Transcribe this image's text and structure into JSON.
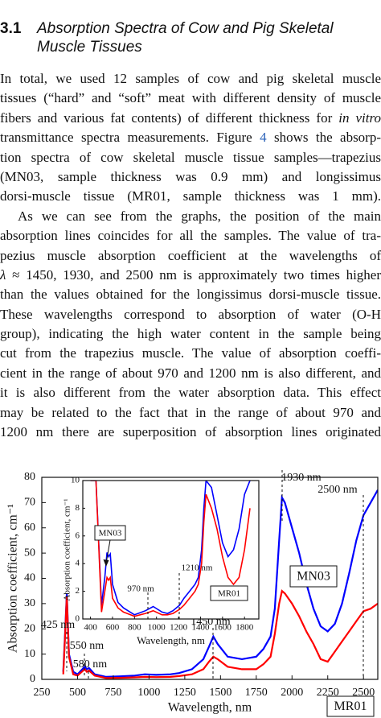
{
  "heading": {
    "number": "3.1",
    "title_lines": [
      "Absorption Spectra of Cow and Pig Skeletal",
      "Muscle Tissues"
    ]
  },
  "paragraphs": [
    {
      "lines": [
        "In total, we used 12 samples of cow and pig skeletal muscle",
        "tissues (“hard” and “soft” meat with different density of muscle",
        [
          "fibers and various fat contents) of different thickness for ",
          {
            "text": "in vitro",
            "style": "italic"
          }
        ],
        [
          "transmittance spectra measurements. Figure ",
          {
            "text": "4",
            "style": "link"
          },
          " shows the absorp-"
        ],
        "tion spectra of cow skeletal muscle tissue samples—trapezius",
        "(MN03, sample thickness was 0.9 mm) and longissimus",
        "dorsi-muscle tissue (MR01, sample thickness was 1 mm)."
      ]
    },
    {
      "lines": [
        "As we can see from the graphs, the position of the main",
        "absorption lines coincides for all the samples. The value of tra-",
        "pezius muscle absorption coefficient at the wavelengths of",
        [
          {
            "text": "λ",
            "style": "italic"
          },
          " ≈ 1450, 1930, and 2500 nm is approximately two times higher"
        ],
        "than the values obtained for the longissimus dorsi-muscle tissue.",
        "These wavelengths correspond to absorption of water (O-H",
        "group), indicating the high water content in the sample being",
        "cut from the trapezius muscle. The value of absorption coeffi-",
        "cient in the range of about 970 and 1200 nm is also different, and",
        "it is also different from the water absorption data. This effect",
        "may be related to the fact that in the range of about 970 and",
        "1200 nm there are superposition of absorption lines originated"
      ]
    }
  ],
  "chart_data": [
    {
      "type": "line",
      "x_label": "Wavelength, nm",
      "y_label": "Absorption coefficient, cm⁻¹",
      "xlim": [
        250,
        2600
      ],
      "xticks": [
        250,
        500,
        750,
        1000,
        1250,
        1500,
        1750,
        2000,
        2250,
        2500
      ],
      "ylim": [
        0,
        80
      ],
      "yticks": [
        0,
        10,
        20,
        30,
        40,
        50,
        60,
        70,
        80
      ],
      "x": [
        400,
        410,
        425,
        440,
        470,
        500,
        550,
        565,
        580,
        620,
        700,
        800,
        900,
        970,
        1050,
        1150,
        1210,
        1300,
        1380,
        1420,
        1450,
        1480,
        1550,
        1650,
        1750,
        1800,
        1850,
        1880,
        1910,
        1930,
        1950,
        2000,
        2050,
        2100,
        2150,
        2200,
        2250,
        2300,
        2350,
        2400,
        2450,
        2500,
        2550,
        2600
      ],
      "series": [
        {
          "name": "MN03",
          "color": "#0000ff",
          "values": [
            3,
            15,
            34,
            10,
            3,
            2,
            5,
            4,
            4.5,
            2,
            1,
            1.2,
            1.5,
            2,
            1.8,
            2,
            2.5,
            4,
            8,
            13,
            17,
            14,
            9,
            8,
            9,
            12,
            17,
            28,
            55,
            72,
            70,
            60,
            50,
            38,
            28,
            21,
            19,
            22,
            30,
            42,
            55,
            65,
            70,
            75
          ]
        },
        {
          "name": "MR01",
          "color": "#ff0000",
          "values": [
            2,
            14,
            33,
            9,
            2,
            1.5,
            4,
            3,
            3.5,
            1.5,
            0.5,
            0.6,
            0.8,
            1,
            0.9,
            1,
            1.3,
            2,
            4,
            7,
            9,
            8,
            5,
            4,
            4,
            6,
            9,
            18,
            30,
            35,
            34,
            30,
            25,
            19,
            14,
            8,
            7,
            11,
            15,
            19,
            23,
            27,
            28,
            30
          ]
        }
      ],
      "annotations": [
        "425 nm",
        "550 nm",
        "580 nm",
        "1450 nm",
        "1930 nm",
        "2500 nm"
      ]
    },
    {
      "type": "line",
      "x_label": "Wavelength, nm",
      "y_label": "Absorption coefficient, cm⁻¹",
      "xlim": [
        330,
        1930
      ],
      "xticks": [
        400,
        600,
        800,
        1000,
        1200,
        1400,
        1600,
        1800
      ],
      "ylim": [
        0,
        10
      ],
      "yticks": [
        0,
        2,
        4,
        6,
        8,
        10
      ],
      "x": [
        400,
        450,
        500,
        530,
        550,
        565,
        580,
        600,
        650,
        700,
        800,
        900,
        970,
        1050,
        1100,
        1150,
        1210,
        1250,
        1300,
        1350,
        1380,
        1410,
        1430,
        1450,
        1500,
        1550,
        1600,
        1650,
        1700,
        1750,
        1800,
        1850
      ],
      "series": [
        {
          "name": "MN03",
          "color": "#0000ff",
          "values": [
            10,
            10,
            1,
            3,
            4.8,
            4.5,
            4.7,
            2.5,
            1.2,
            0.8,
            0.3,
            0.6,
            0.9,
            0.5,
            0.4,
            0.6,
            1,
            1.5,
            2,
            2.5,
            3,
            5,
            8,
            10,
            9.5,
            7.5,
            5.5,
            4.5,
            5,
            6.5,
            9,
            10
          ]
        },
        {
          "name": "MR01",
          "color": "#ff0000",
          "values": [
            10,
            10,
            0.5,
            2,
            3,
            2.8,
            3,
            1.5,
            0.8,
            0.5,
            0.2,
            0.4,
            0.6,
            0.3,
            0.3,
            0.4,
            0.7,
            1,
            1.5,
            2,
            2.5,
            4,
            7,
            9,
            8,
            6.5,
            4.5,
            3,
            2.5,
            3,
            5,
            8
          ]
        }
      ],
      "annotations": [
        "970 nm",
        "1210 nm"
      ]
    }
  ]
}
